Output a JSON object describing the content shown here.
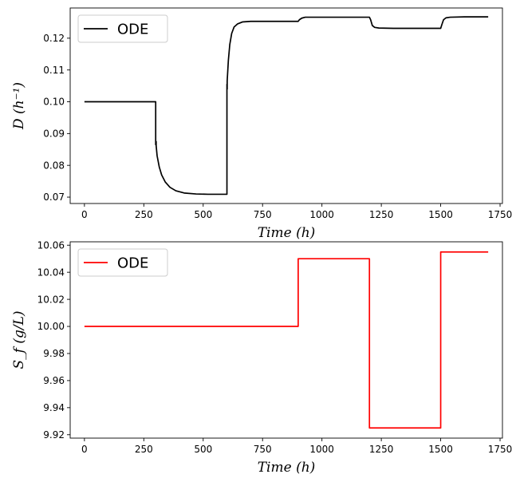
{
  "chart_data": [
    {
      "type": "line",
      "title": "",
      "xlabel": "Time  (h)",
      "ylabel": "D  (h⁻¹)",
      "xlim": [
        -60,
        1760
      ],
      "ylim": [
        0.068,
        0.1295
      ],
      "xticks": [
        0,
        250,
        500,
        750,
        1000,
        1250,
        1500,
        1750
      ],
      "yticks": [
        0.07,
        0.08,
        0.09,
        0.1,
        0.11,
        0.12
      ],
      "ytick_labels": [
        "0.07",
        "0.08",
        "0.09",
        "0.10",
        "0.11",
        "0.12"
      ],
      "legend": "top-left",
      "series": [
        {
          "name": "ODE",
          "color": "#000000",
          "x": [
            0,
            300,
            300,
            302,
            302,
            306,
            315,
            325,
            340,
            360,
            385,
            420,
            470,
            520,
            600,
            600,
            601,
            601,
            606,
            612,
            620,
            630,
            645,
            665,
            700,
            800,
            900,
            905,
            915,
            930,
            1000,
            1100,
            1200,
            1205,
            1212,
            1222,
            1240,
            1300,
            1400,
            1500,
            1505,
            1512,
            1522,
            1540,
            1600,
            1700
          ],
          "y": [
            0.1,
            0.1,
            0.0865,
            0.0875,
            0.0862,
            0.083,
            0.0795,
            0.077,
            0.0748,
            0.0731,
            0.072,
            0.0713,
            0.071,
            0.0709,
            0.0709,
            0.1055,
            0.104,
            0.1065,
            0.113,
            0.118,
            0.1215,
            0.1235,
            0.1245,
            0.1251,
            0.1253,
            0.1253,
            0.1253,
            0.1258,
            0.1263,
            0.1266,
            0.1266,
            0.1266,
            0.1266,
            0.1258,
            0.124,
            0.1234,
            0.1232,
            0.1231,
            0.1231,
            0.1231,
            0.1243,
            0.1258,
            0.1264,
            0.1266,
            0.1267,
            0.1267
          ]
        }
      ]
    },
    {
      "type": "line",
      "title": "",
      "xlabel": "Time  (h)",
      "ylabel": "S_f  (g/L)",
      "xlim": [
        -60,
        1760
      ],
      "ylim": [
        9.9175,
        10.0625
      ],
      "xticks": [
        0,
        250,
        500,
        750,
        1000,
        1250,
        1500,
        1750
      ],
      "yticks": [
        9.92,
        9.94,
        9.96,
        9.98,
        10.0,
        10.02,
        10.04,
        10.06
      ],
      "ytick_labels": [
        "9.92",
        "9.94",
        "9.96",
        "9.98",
        "10.00",
        "10.02",
        "10.04",
        "10.06"
      ],
      "legend": "top-left",
      "series": [
        {
          "name": "ODE",
          "color": "#ff0000",
          "x": [
            0,
            900,
            900,
            1200,
            1200,
            1500,
            1500,
            1700
          ],
          "y": [
            10.0,
            10.0,
            10.05,
            10.05,
            9.925,
            9.925,
            10.055,
            10.055
          ]
        }
      ]
    }
  ]
}
